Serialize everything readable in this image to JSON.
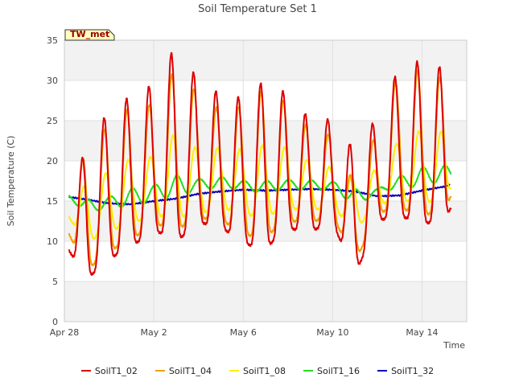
{
  "chart_data": {
    "type": "line",
    "title": "Soil Temperature Set 1",
    "xlabel": "Time",
    "ylabel": "Soil Temperature (C)",
    "annotation": "TW_met",
    "x_ticks": [
      "Apr 28",
      "May 2",
      "May 6",
      "May 10",
      "May 14"
    ],
    "x_tick_days": [
      0,
      4,
      8,
      12,
      16
    ],
    "xlim_days": [
      0,
      18
    ],
    "ylim": [
      0,
      35
    ],
    "y_ticks": [
      0,
      5,
      10,
      15,
      20,
      25,
      30,
      35
    ],
    "grid": true,
    "legend_position": "bottom",
    "day_axis_label": "days from Apr 28",
    "daily_points": {
      "day": [
        0.2,
        1,
        2,
        3,
        4,
        5,
        6,
        7,
        8,
        9,
        10,
        11,
        12,
        13,
        14,
        15,
        16,
        17,
        17.3
      ],
      "soilt1_02_max": [
        10.5,
        24,
        25.5,
        28.5,
        29.5,
        34.3,
        30.3,
        28,
        28,
        30.2,
        28,
        25.5,
        24.9,
        21.3,
        25.7,
        31.5,
        32.8,
        31.3,
        22
      ],
      "soilt1_02_min": [
        9,
        5.4,
        7.5,
        9.7,
        11.2,
        10,
        12.5,
        11.5,
        10,
        9,
        11.5,
        11.5,
        12,
        6,
        12.5,
        13,
        12.5,
        12.3,
        14
      ],
      "soilt1_04_max": [
        12,
        23,
        24,
        27,
        27,
        31.5,
        28.5,
        26,
        27,
        29,
        27,
        24,
        23,
        17,
        24,
        31,
        31.5,
        30,
        16
      ],
      "soilt1_04_min": [
        11,
        6.5,
        8.5,
        10.5,
        12,
        11.5,
        13,
        12.5,
        11,
        10.5,
        12.5,
        12.5,
        13,
        7.5,
        13.5,
        14,
        13.5,
        13.5,
        15.5
      ],
      "soilt1_08_max": [
        14,
        17.5,
        18.5,
        20.5,
        20.5,
        23.5,
        21.5,
        21.5,
        21.5,
        22,
        21.5,
        20,
        19,
        18,
        19,
        22.5,
        24,
        23.5,
        20
      ],
      "soilt1_08_min": [
        13,
        10,
        11,
        12.5,
        13,
        13,
        13.5,
        14,
        13.5,
        13,
        14,
        14,
        14,
        11.5,
        14.5,
        15,
        15,
        15,
        16.5
      ],
      "soilt1_16_max": [
        15.8,
        15.2,
        15.4,
        16.7,
        16.9,
        18.2,
        17.8,
        17.9,
        17.6,
        17.5,
        17.6,
        17.7,
        17.3,
        16.5,
        16.5,
        18,
        19.3,
        19.4,
        19
      ],
      "soilt1_16_min": [
        15.5,
        13.5,
        14,
        14.5,
        15,
        15.5,
        16.5,
        16.5,
        16.5,
        16,
        16.5,
        16.5,
        16.3,
        14.5,
        16,
        16.5,
        17,
        17.5,
        17.5
      ],
      "soilt1_32": [
        15.5,
        15.2,
        14.7,
        14.6,
        15,
        15.3,
        15.9,
        16.2,
        16.4,
        16.3,
        16.4,
        16.5,
        16.4,
        16.2,
        15.6,
        15.7,
        16.3,
        16.8,
        17.1
      ]
    },
    "series": [
      {
        "name": "SoilT1_02",
        "color": "#dd0000"
      },
      {
        "name": "SoilT1_04",
        "color": "#f0a000"
      },
      {
        "name": "SoilT1_08",
        "color": "#ffee00"
      },
      {
        "name": "SoilT1_16",
        "color": "#22dd22"
      },
      {
        "name": "SoilT1_32",
        "color": "#0000bb"
      }
    ]
  }
}
